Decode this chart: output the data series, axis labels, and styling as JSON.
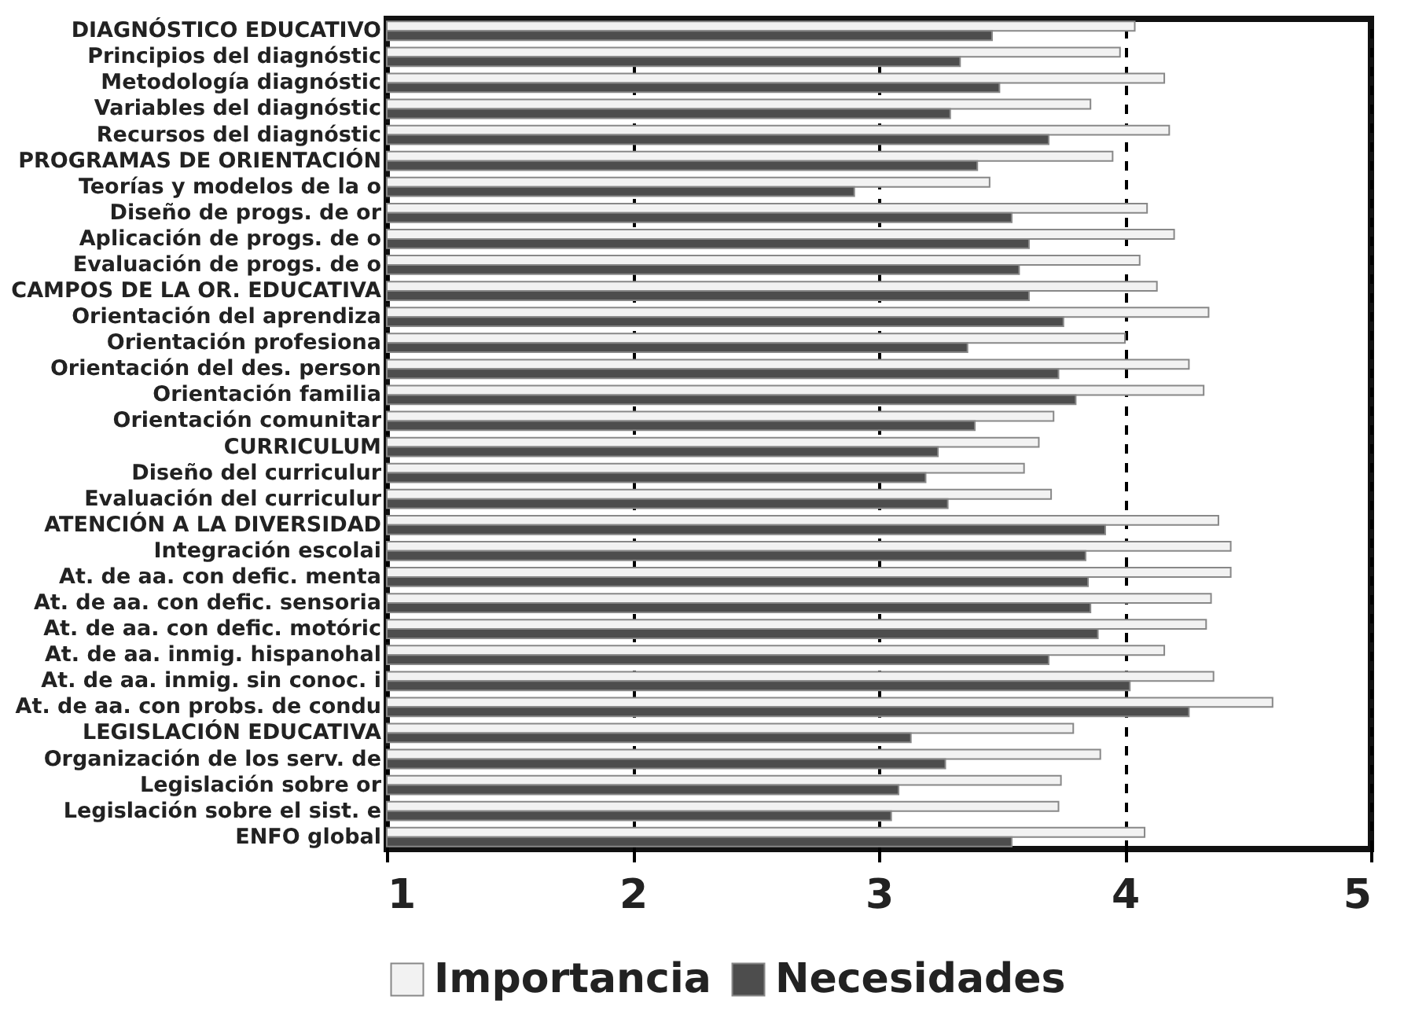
{
  "chart_data": {
    "type": "bar",
    "orientation": "horizontal",
    "categories": [
      "DIAGNÓSTICO EDUCATIVO",
      "Principios del diagnóstic",
      "Metodología diagnóstic",
      "Variables del diagnóstic",
      "Recursos del diagnóstic",
      "PROGRAMAS DE ORIENTACIÓN",
      "Teorías y modelos de la o",
      "Diseño de progs. de or",
      "Aplicación de progs. de o",
      "Evaluación de progs. de o",
      "CAMPOS DE LA OR. EDUCATIVA",
      "Orientación del aprendiza",
      "Orientación profesiona",
      "Orientación del des. person",
      "Orientación familia",
      "Orientación comunitar",
      "CURRICULUM",
      "Diseño del curriculur",
      "Evaluación del curriculur",
      "ATENCIÓN A LA DIVERSIDAD",
      "Integración escolai",
      "At. de aa. con defic. menta",
      "At. de aa. con defic. sensoria",
      "At. de aa. con defic. motóric",
      "At. de aa. inmig. hispanohal",
      "At. de aa. inmig. sin conoc. i",
      "At. de aa. con probs. de condu",
      "LEGISLACIÓN EDUCATIVA",
      "Organización de los serv. de",
      "Legislación sobre or",
      "Legislación sobre el sist. e",
      "ENFO global"
    ],
    "series": [
      {
        "name": "Importancia",
        "color": "#f2f2f2",
        "values": [
          4.04,
          3.98,
          4.16,
          3.86,
          4.18,
          3.95,
          3.45,
          4.09,
          4.2,
          4.06,
          4.13,
          4.34,
          4.0,
          4.26,
          4.32,
          3.71,
          3.65,
          3.59,
          3.7,
          4.38,
          4.43,
          4.43,
          4.35,
          4.33,
          4.16,
          4.36,
          4.6,
          3.79,
          3.9,
          3.74,
          3.73,
          4.08
        ]
      },
      {
        "name": "Necesidades",
        "color": "#4d4d4d",
        "values": [
          3.46,
          3.33,
          3.49,
          3.29,
          3.69,
          3.4,
          2.9,
          3.54,
          3.61,
          3.57,
          3.61,
          3.75,
          3.36,
          3.73,
          3.8,
          3.39,
          3.24,
          3.19,
          3.28,
          3.92,
          3.84,
          3.85,
          3.86,
          3.89,
          3.69,
          4.02,
          4.26,
          3.13,
          3.27,
          3.08,
          3.05,
          3.54
        ]
      }
    ],
    "xlim": [
      1,
      5
    ],
    "xticks": [
      1,
      2,
      3,
      4,
      5
    ],
    "grid": "x",
    "legend": "bottom"
  }
}
